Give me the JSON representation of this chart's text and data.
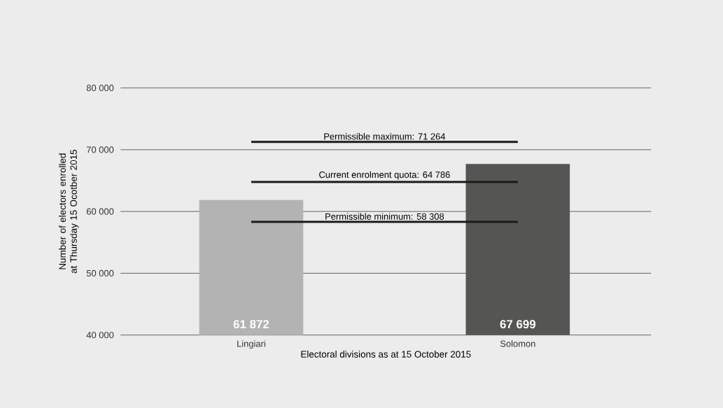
{
  "chart_data": {
    "type": "bar",
    "xlabel": "Electoral divisions as at 15 October 2015",
    "ylabel": "Number of electors enrolled at Thursday 15 Ocotber 2015",
    "categories": [
      "Lingiari",
      "Solomon"
    ],
    "values": [
      61872,
      67699
    ],
    "colors": [
      "#b3b3b3",
      "#555553"
    ],
    "value_labels": [
      "61 872",
      "67 699"
    ],
    "ylim": [
      40000,
      80000
    ],
    "yticks": [
      {
        "value": 40000,
        "label": "40 000"
      },
      {
        "value": 50000,
        "label": "50 000"
      },
      {
        "value": 60000,
        "label": "60 000"
      },
      {
        "value": 70000,
        "label": "70 000"
      },
      {
        "value": 80000,
        "label": "80 000"
      }
    ],
    "grid": "y",
    "ref_lines": [
      {
        "axis": "y",
        "value": 71264,
        "label": "Permissible maximum: 71 264",
        "color": "#1a1a1a"
      },
      {
        "axis": "y",
        "value": 64786,
        "label": "Current enrolment quota: 64 786",
        "color": "#1a1a1a"
      },
      {
        "axis": "y",
        "value": 58308,
        "label": "Permissible minimum: 58 308",
        "color": "#1a1a1a"
      }
    ]
  }
}
